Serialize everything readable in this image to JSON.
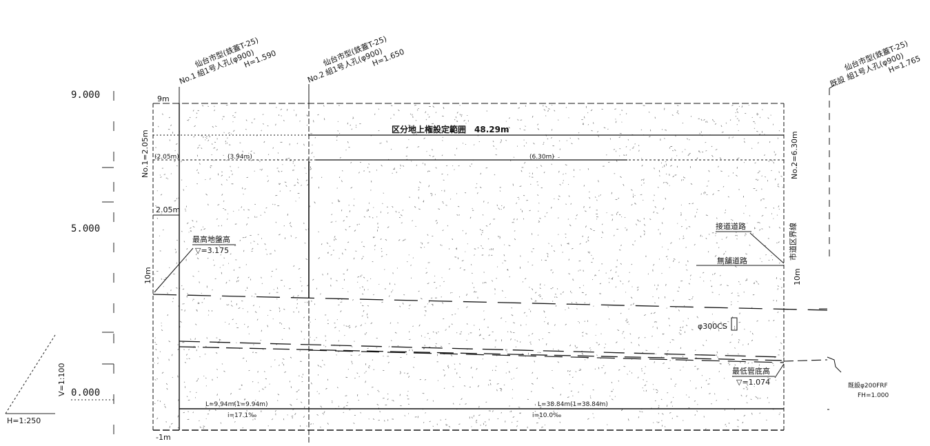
{
  "scale": {
    "elev_top": "9.000",
    "elev_mid": "5.000",
    "elev_zero": "0.000",
    "v_scale": "V=1:100",
    "h_scale": "H=1:250"
  },
  "manholes": [
    {
      "name": "No.1",
      "line1": "仙台市型(鉄蓋T-25)",
      "line2": "組1号人孔(φ900)",
      "depth": "H=1.590"
    },
    {
      "name": "No.2",
      "line1": "仙台市型(鉄蓋T-25)",
      "line2": "組1号人孔(φ900)",
      "depth": "H=1.650"
    },
    {
      "name": "既設",
      "line1": "仙台市型(鉄蓋T-25)",
      "line2": "組1号人孔(φ900)",
      "depth": "H=1.765"
    }
  ],
  "labels": {
    "nine_m": "9m",
    "minus_one": "-1m",
    "range_title": "区分地上権設定範囲　48.29m",
    "left_height": "No.1=2.05m",
    "right_height": "No.2=6.30m",
    "dim_205": "2.05m",
    "dim_205_p": "(2.05m)",
    "dim_394": "(3.94m)",
    "dim_630": "(6.30m)",
    "ten_m_left": "10m",
    "ten_m_right": "10m",
    "ground_high": "最高地盤高",
    "ground_high_val": "▽=3.175",
    "road_yes": "接道道路",
    "road_no": "無舗道路",
    "boundary": "市道区界線",
    "pipe_bottom": "最低管底高",
    "pipe_bottom_val": "▽=1.074",
    "pipe_spec": "φ300CS",
    "existing_pipe": "既設φ200FRF",
    "existing_depth": "FH=1.000",
    "len_left": "L=9.94m(1=9.94m)",
    "grad_left": "i=17.1‰",
    "len_right": "L=38.84m(1=38.84m)",
    "grad_right": "i=10.0‰"
  }
}
